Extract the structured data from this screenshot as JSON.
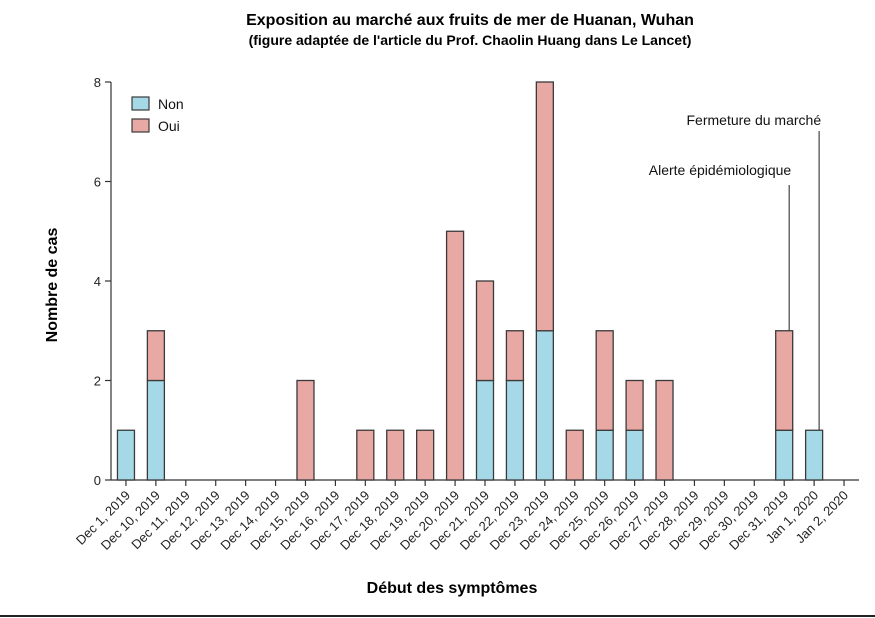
{
  "chart_data": {
    "type": "bar",
    "stacked": true,
    "title": "Exposition au marché aux fruits de mer de Huanan, Wuhan",
    "subtitle": "(figure adaptée de l'article du Prof. Chaolin Huang dans Le Lancet)",
    "xlabel": "Début des symptômes",
    "ylabel": "Nombre de cas",
    "ylim": [
      0,
      8
    ],
    "yticks": [
      0,
      2,
      4,
      6,
      8
    ],
    "categories": [
      "Dec 1, 2019",
      "Dec 10, 2019",
      "Dec 11, 2019",
      "Dec 12, 2019",
      "Dec 13, 2019",
      "Dec 14, 2019",
      "Dec 15, 2019",
      "Dec 16, 2019",
      "Dec 17, 2019",
      "Dec 18, 2019",
      "Dec 19, 2019",
      "Dec 20, 2019",
      "Dec 21, 2019",
      "Dec 22, 2019",
      "Dec 23, 2019",
      "Dec 24, 2019",
      "Dec 25, 2019",
      "Dec 26, 2019",
      "Dec 27, 2019",
      "Dec 28, 2019",
      "Dec 29, 2019",
      "Dec 30, 2019",
      "Dec 31, 2019",
      "Jan 1, 2020",
      "Jan 2, 2020"
    ],
    "series": [
      {
        "name": "Non",
        "color": "#a6d9e8",
        "values": [
          1,
          2,
          0,
          0,
          0,
          0,
          0,
          0,
          0,
          0,
          0,
          0,
          2,
          2,
          3,
          0,
          1,
          1,
          0,
          0,
          0,
          0,
          1,
          1,
          0
        ]
      },
      {
        "name": "Oui",
        "color": "#e8a9a5",
        "values": [
          0,
          1,
          0,
          0,
          0,
          0,
          2,
          0,
          1,
          1,
          1,
          5,
          2,
          1,
          5,
          1,
          2,
          1,
          2,
          0,
          0,
          0,
          2,
          0,
          0
        ]
      }
    ],
    "legend": "top-left",
    "grid": false,
    "annotations": [
      {
        "text": "Alerte épidémiologique",
        "category": "Dec 31, 2019"
      },
      {
        "text": "Fermeture du marché",
        "category": "Jan 1, 2020"
      }
    ]
  }
}
